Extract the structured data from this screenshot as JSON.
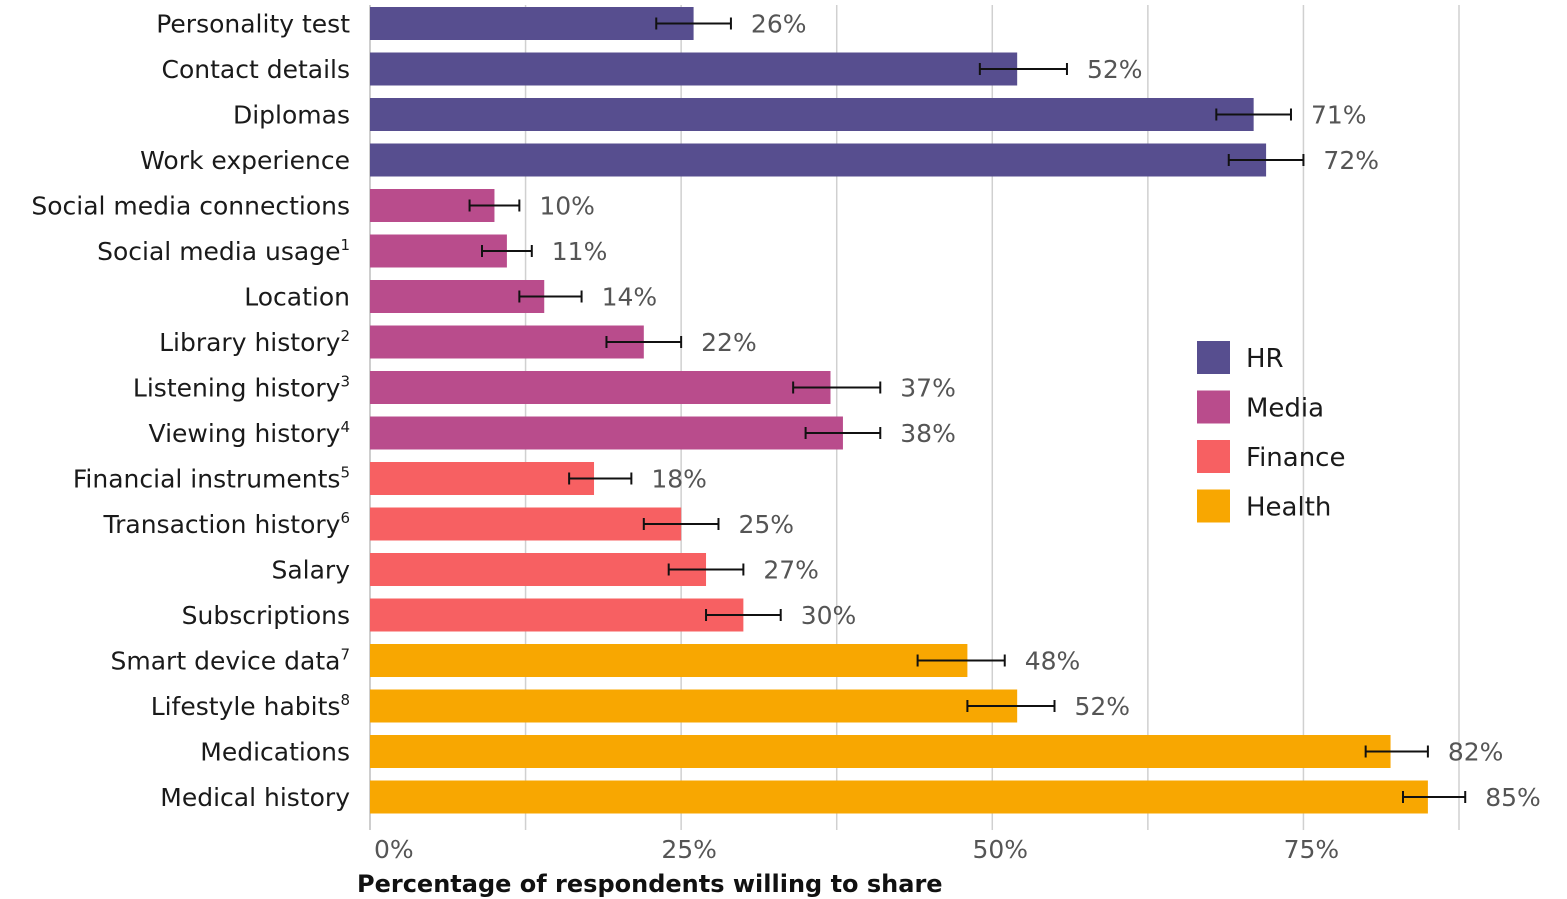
{
  "chart_data": {
    "type": "bar",
    "orientation": "horizontal",
    "xlabel": "Percentage of respondents willing to share",
    "xlim": [
      0,
      87.5
    ],
    "x_ticks": [
      0,
      25,
      50,
      75
    ],
    "x_tick_labels": [
      "0%",
      "25%",
      "50%",
      "75%"
    ],
    "grid": true,
    "legend": [
      {
        "name": "HR",
        "color": "#574e8f"
      },
      {
        "name": "Media",
        "color": "#b94c8c"
      },
      {
        "name": "Finance",
        "color": "#f76062"
      },
      {
        "name": "Health",
        "color": "#f8a701"
      }
    ],
    "legend_position": "right",
    "bars": [
      {
        "label": "Personality test",
        "sup": "",
        "group": "HR",
        "value": 26,
        "value_label": "26%",
        "err_low": 23,
        "err_high": 29
      },
      {
        "label": "Contact details",
        "sup": "",
        "group": "HR",
        "value": 52,
        "value_label": "52%",
        "err_low": 49,
        "err_high": 56
      },
      {
        "label": "Diplomas",
        "sup": "",
        "group": "HR",
        "value": 71,
        "value_label": "71%",
        "err_low": 68,
        "err_high": 74
      },
      {
        "label": "Work experience",
        "sup": "",
        "group": "HR",
        "value": 72,
        "value_label": "72%",
        "err_low": 69,
        "err_high": 75
      },
      {
        "label": "Social media connections",
        "sup": "",
        "group": "Media",
        "value": 10,
        "value_label": "10%",
        "err_low": 8,
        "err_high": 12
      },
      {
        "label": "Social media usage",
        "sup": "1",
        "group": "Media",
        "value": 11,
        "value_label": "11%",
        "err_low": 9,
        "err_high": 13
      },
      {
        "label": "Location",
        "sup": "",
        "group": "Media",
        "value": 14,
        "value_label": "14%",
        "err_low": 12,
        "err_high": 17
      },
      {
        "label": "Library history",
        "sup": "2",
        "group": "Media",
        "value": 22,
        "value_label": "22%",
        "err_low": 19,
        "err_high": 25
      },
      {
        "label": "Listening history",
        "sup": "3",
        "group": "Media",
        "value": 37,
        "value_label": "37%",
        "err_low": 34,
        "err_high": 41
      },
      {
        "label": "Viewing history",
        "sup": "4",
        "group": "Media",
        "value": 38,
        "value_label": "38%",
        "err_low": 35,
        "err_high": 41
      },
      {
        "label": "Financial instruments",
        "sup": "5",
        "group": "Finance",
        "value": 18,
        "value_label": "18%",
        "err_low": 16,
        "err_high": 21
      },
      {
        "label": "Transaction history",
        "sup": "6",
        "group": "Finance",
        "value": 25,
        "value_label": "25%",
        "err_low": 22,
        "err_high": 28
      },
      {
        "label": "Salary",
        "sup": "",
        "group": "Finance",
        "value": 27,
        "value_label": "27%",
        "err_low": 24,
        "err_high": 30
      },
      {
        "label": "Subscriptions",
        "sup": "",
        "group": "Finance",
        "value": 30,
        "value_label": "30%",
        "err_low": 27,
        "err_high": 33
      },
      {
        "label": "Smart device data",
        "sup": "7",
        "group": "Health",
        "value": 48,
        "value_label": "48%",
        "err_low": 44,
        "err_high": 51
      },
      {
        "label": "Lifestyle habits",
        "sup": "8",
        "group": "Health",
        "value": 52,
        "value_label": "52%",
        "err_low": 48,
        "err_high": 55
      },
      {
        "label": "Medications",
        "sup": "",
        "group": "Health",
        "value": 82,
        "value_label": "82%",
        "err_low": 80,
        "err_high": 85
      },
      {
        "label": "Medical history",
        "sup": "",
        "group": "Health",
        "value": 85,
        "value_label": "85%",
        "err_low": 83,
        "err_high": 88
      }
    ]
  }
}
